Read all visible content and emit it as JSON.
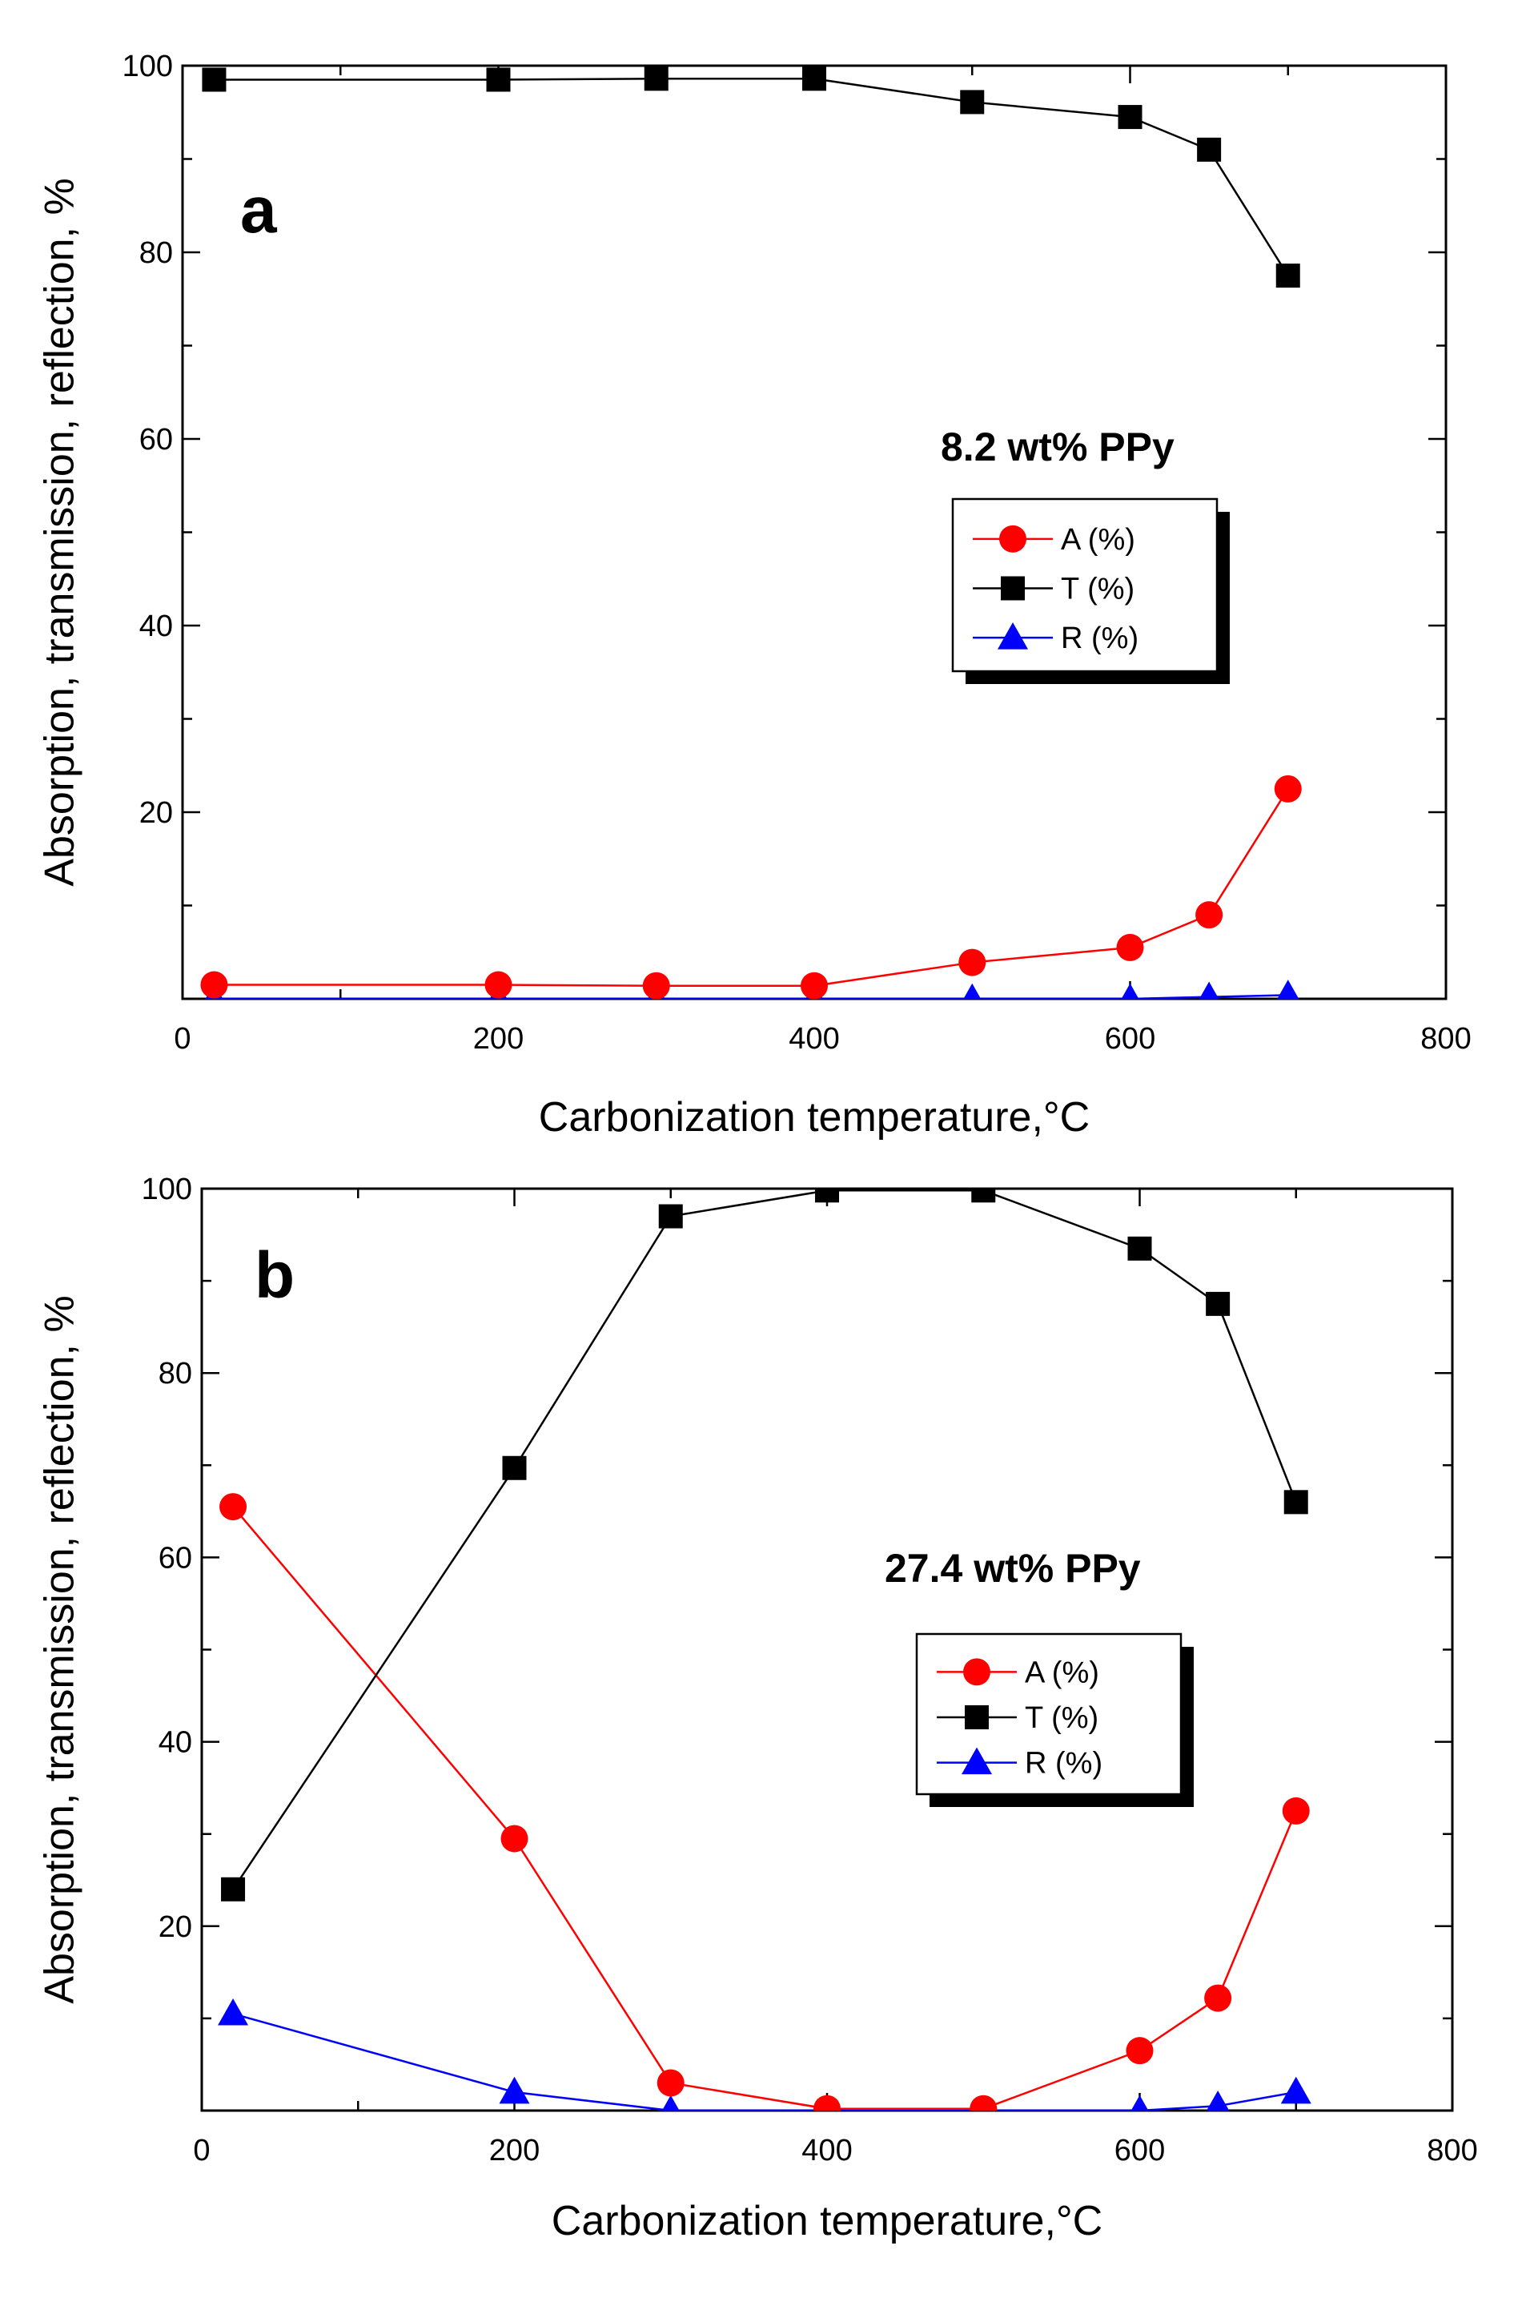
{
  "chart_data": [
    {
      "type": "line",
      "panel_label": "a",
      "annotation": "8.2 wt% PPy",
      "xlabel": "Carbonization temperature,°C",
      "ylabel": "Absorption, transmission, reflection, %",
      "xlim": [
        0,
        800
      ],
      "ylim": [
        0,
        100
      ],
      "xticks": [
        0,
        200,
        400,
        600,
        800
      ],
      "yticks": [
        20,
        40,
        60,
        80,
        100
      ],
      "legend_position": "center-right",
      "series": [
        {
          "name": "A (%)",
          "color": "#ff0000",
          "marker": "circle",
          "x": [
            20,
            200,
            300,
            400,
            500,
            600,
            650,
            700
          ],
          "y": [
            1.5,
            1.5,
            1.4,
            1.4,
            3.9,
            5.5,
            9.0,
            22.5
          ]
        },
        {
          "name": "T (%)",
          "color": "#000000",
          "marker": "square",
          "x": [
            20,
            200,
            300,
            400,
            500,
            600,
            650,
            700
          ],
          "y": [
            98.5,
            98.5,
            98.6,
            98.6,
            96.1,
            94.5,
            91.0,
            77.5
          ]
        },
        {
          "name": "R (%)",
          "color": "#0000ff",
          "marker": "triangle",
          "x": [
            20,
            200,
            300,
            400,
            500,
            600,
            650,
            700
          ],
          "y": [
            0.0,
            0.0,
            0.0,
            0.0,
            0.0,
            0.0,
            0.2,
            0.4
          ]
        }
      ]
    },
    {
      "type": "line",
      "panel_label": "b",
      "annotation": "27.4 wt% PPy",
      "xlabel": "Carbonization temperature,°C",
      "ylabel": "Absorption, transmission, reflection, %",
      "xlim": [
        0,
        800
      ],
      "ylim": [
        0,
        100
      ],
      "xticks": [
        0,
        200,
        400,
        600,
        800
      ],
      "yticks": [
        20,
        40,
        60,
        80,
        100
      ],
      "legend_position": "center-right",
      "series": [
        {
          "name": "A (%)",
          "color": "#ff0000",
          "marker": "circle",
          "x": [
            20,
            200,
            300,
            400,
            500,
            600,
            650,
            700
          ],
          "y": [
            65.5,
            29.5,
            3.0,
            0.2,
            0.2,
            6.5,
            12.2,
            32.5
          ]
        },
        {
          "name": "T (%)",
          "color": "#000000",
          "marker": "square",
          "x": [
            20,
            200,
            300,
            400,
            500,
            600,
            650,
            700
          ],
          "y": [
            24.0,
            69.7,
            97.0,
            99.8,
            99.8,
            93.5,
            87.5,
            66.0
          ]
        },
        {
          "name": "R (%)",
          "color": "#0000ff",
          "marker": "triangle",
          "x": [
            20,
            200,
            300,
            400,
            500,
            600,
            650,
            700
          ],
          "y": [
            10.5,
            2.0,
            0.0,
            0.0,
            0.0,
            0.0,
            0.5,
            2.0
          ]
        }
      ]
    }
  ]
}
